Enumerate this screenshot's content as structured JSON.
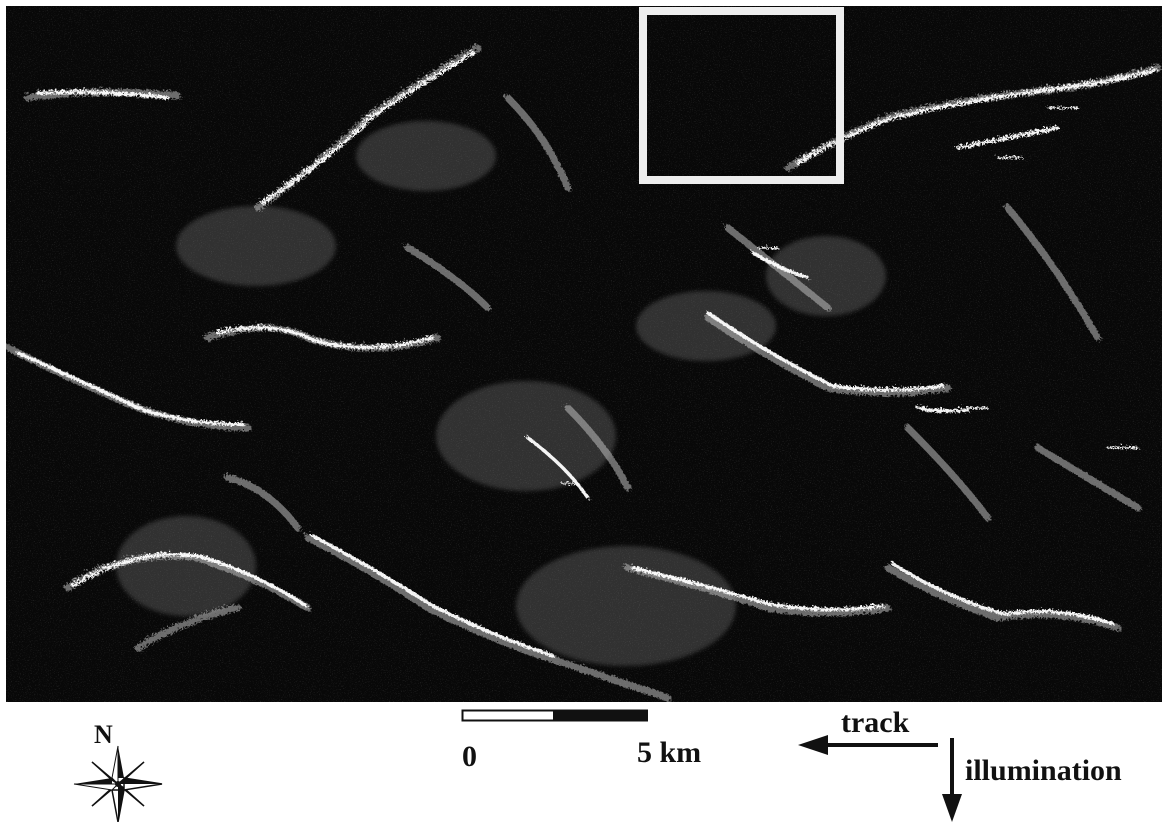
{
  "map": {
    "image": "radar backscatter image of mountainous terrain with bright ridge crests",
    "inset_box": "white rectangle marking a study area near the top centre-right",
    "colors": {
      "background": "#080808",
      "ridge_bright": "#ffffff",
      "ridge_mid": "#bdbdbd",
      "inset_box": "#eeeeee"
    }
  },
  "scale_bar": {
    "start_label": "0",
    "end_label": "5 km",
    "segments": 2,
    "colors": [
      "#ffffff",
      "#111111"
    ]
  },
  "directions": {
    "track_label": "track",
    "track_direction": "west",
    "illumination_label": "illumination",
    "illumination_direction": "south"
  },
  "north_arrow": {
    "label": "N",
    "icon": "compass-rose-icon"
  }
}
